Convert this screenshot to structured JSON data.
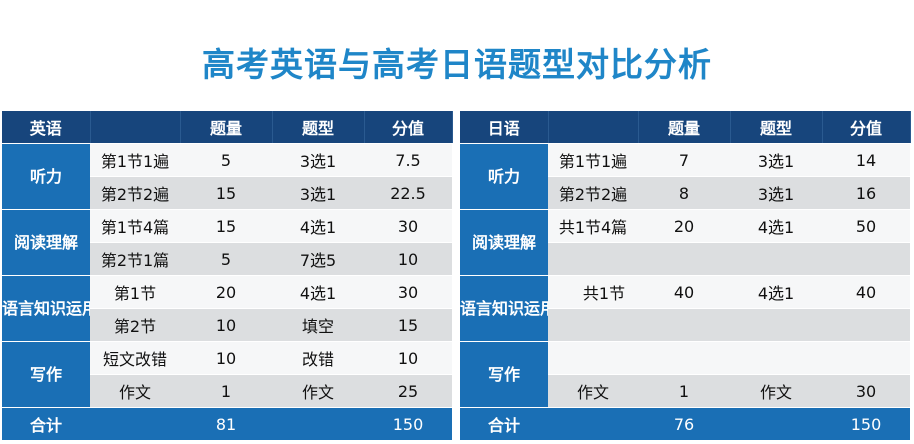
{
  "title": "高考英语与高考日语题型对比分析",
  "english": {
    "headers": [
      "英语",
      "",
      "题量",
      "题型",
      "分值"
    ],
    "categories": [
      "听力",
      "阅读理解",
      "语言知识运用",
      "写作"
    ],
    "rows": [
      [
        "第1节1遍",
        "5",
        "3选1",
        "7.5"
      ],
      [
        "第2节2遍",
        "15",
        "3选1",
        "22.5"
      ],
      [
        "第1节4篇",
        "15",
        "4选1",
        "30"
      ],
      [
        "第2节1篇",
        "5",
        "7选5",
        "10"
      ],
      [
        "第1节",
        "20",
        "4选1",
        "30"
      ],
      [
        "第2节",
        "10",
        "填空",
        "15"
      ],
      [
        "短文改错",
        "10",
        "改错",
        "10"
      ],
      [
        "作文",
        "1",
        "作文",
        "25"
      ]
    ],
    "total": [
      "合计",
      "",
      "81",
      "",
      "150"
    ]
  },
  "japanese": {
    "headers": [
      "日语",
      "",
      "题量",
      "题型",
      "分值"
    ],
    "categories": [
      "听力",
      "阅读理解",
      "语言知识运用",
      "写作"
    ],
    "rows": [
      [
        "第1节1遍",
        "7",
        "3选1",
        "14"
      ],
      [
        "第2节2遍",
        "8",
        "3选1",
        "16"
      ],
      [
        "共1节4篇",
        "20",
        "4选1",
        "50"
      ],
      [
        "",
        "",
        "",
        ""
      ],
      [
        "共1节",
        "40",
        "4选1",
        "40"
      ],
      [
        "",
        "",
        "",
        ""
      ],
      [
        "",
        "",
        "",
        ""
      ],
      [
        "作文",
        "1",
        "作文",
        "30"
      ]
    ],
    "total": [
      "合计",
      "",
      "76",
      "",
      "150"
    ]
  }
}
